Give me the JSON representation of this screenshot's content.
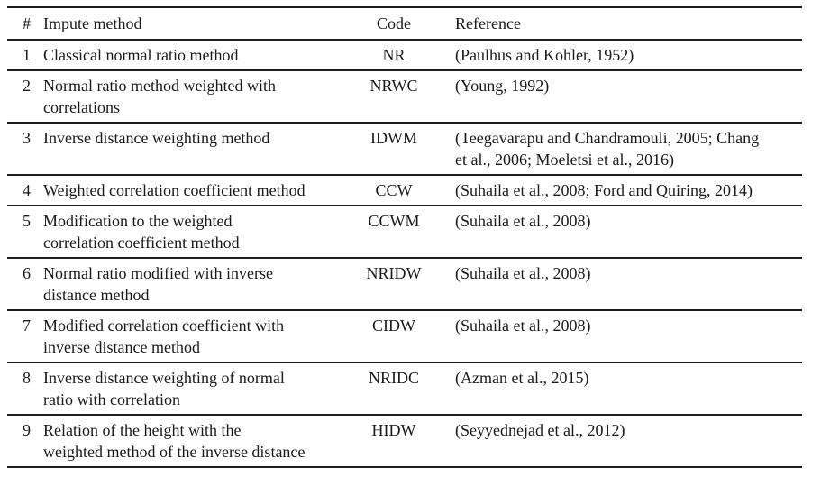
{
  "table": {
    "headers": {
      "num": "#",
      "method": "Impute method",
      "code": "Code",
      "reference": "Reference"
    },
    "rows": [
      {
        "num": "1",
        "method": [
          "Classical normal ratio method"
        ],
        "code": "NR",
        "reference": [
          "(Paulhus and Kohler, 1952)"
        ]
      },
      {
        "num": "2",
        "method": [
          "Normal ratio method weighted with",
          "correlations"
        ],
        "code": "NRWC",
        "reference": [
          "(Young, 1992)"
        ]
      },
      {
        "num": "3",
        "method": [
          "Inverse distance weighting method"
        ],
        "code": "IDWM",
        "reference": [
          "(Teegavarapu and Chandramouli, 2005; Chang",
          "et al., 2006; Moeletsi et al., 2016)"
        ]
      },
      {
        "num": "4",
        "method": [
          "Weighted correlation coefficient method"
        ],
        "code": "CCW",
        "reference": [
          "(Suhaila et al., 2008; Ford and Quiring, 2014)"
        ]
      },
      {
        "num": "5",
        "method": [
          "Modification to the weighted",
          "correlation coefficient method"
        ],
        "code": "CCWM",
        "reference": [
          "(Suhaila et al., 2008)"
        ]
      },
      {
        "num": "6",
        "method": [
          "Normal ratio modified with inverse",
          "distance method"
        ],
        "code": "NRIDW",
        "reference": [
          "(Suhaila et al., 2008)"
        ]
      },
      {
        "num": "7",
        "method": [
          "Modified correlation coefficient with",
          "inverse distance method"
        ],
        "code": "CIDW",
        "reference": [
          "(Suhaila et al., 2008)"
        ]
      },
      {
        "num": "8",
        "method": [
          "Inverse distance weighting of normal",
          "ratio with correlation"
        ],
        "code": "NRIDC",
        "reference": [
          "(Azman et al., 2015)"
        ]
      },
      {
        "num": "9",
        "method": [
          "Relation of the height with the",
          "weighted method of the inverse distance"
        ],
        "code": "HIDW",
        "reference": [
          "(Seyyednejad et al., 2012)"
        ]
      }
    ],
    "colors": {
      "text": "#1a1a1a",
      "rule": "#1e1e1e",
      "background": "#ffffff"
    }
  }
}
